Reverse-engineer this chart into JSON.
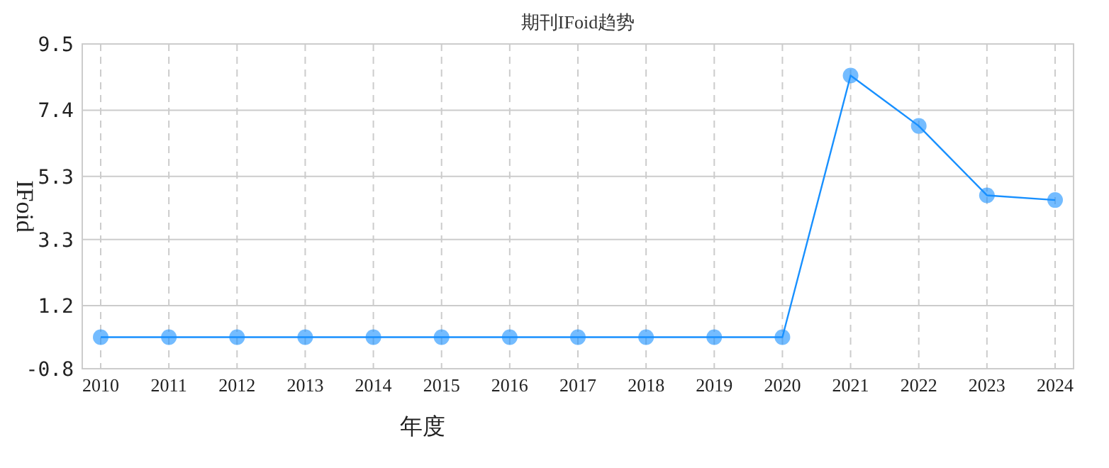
{
  "chart_data": {
    "type": "line",
    "title": "期刊IFoid趋势",
    "xlabel": "年度",
    "ylabel": "IFoid",
    "categories": [
      "2010",
      "2011",
      "2012",
      "2013",
      "2014",
      "2015",
      "2016",
      "2017",
      "2018",
      "2019",
      "2020",
      "2021",
      "2022",
      "2023",
      "2024"
    ],
    "series": [
      {
        "color": "#1890ff",
        "values": [
          0.2,
          0.2,
          0.2,
          0.2,
          0.2,
          0.2,
          0.2,
          0.2,
          0.2,
          0.2,
          0.2,
          8.5,
          6.9,
          4.7,
          4.55
        ]
      }
    ],
    "ylim": [
      -0.8,
      9.5
    ],
    "yticks": [
      -0.8,
      1.2,
      3.3,
      5.3,
      7.4,
      9.5
    ],
    "grid": true,
    "marker": "circle",
    "line_style": "solid"
  }
}
